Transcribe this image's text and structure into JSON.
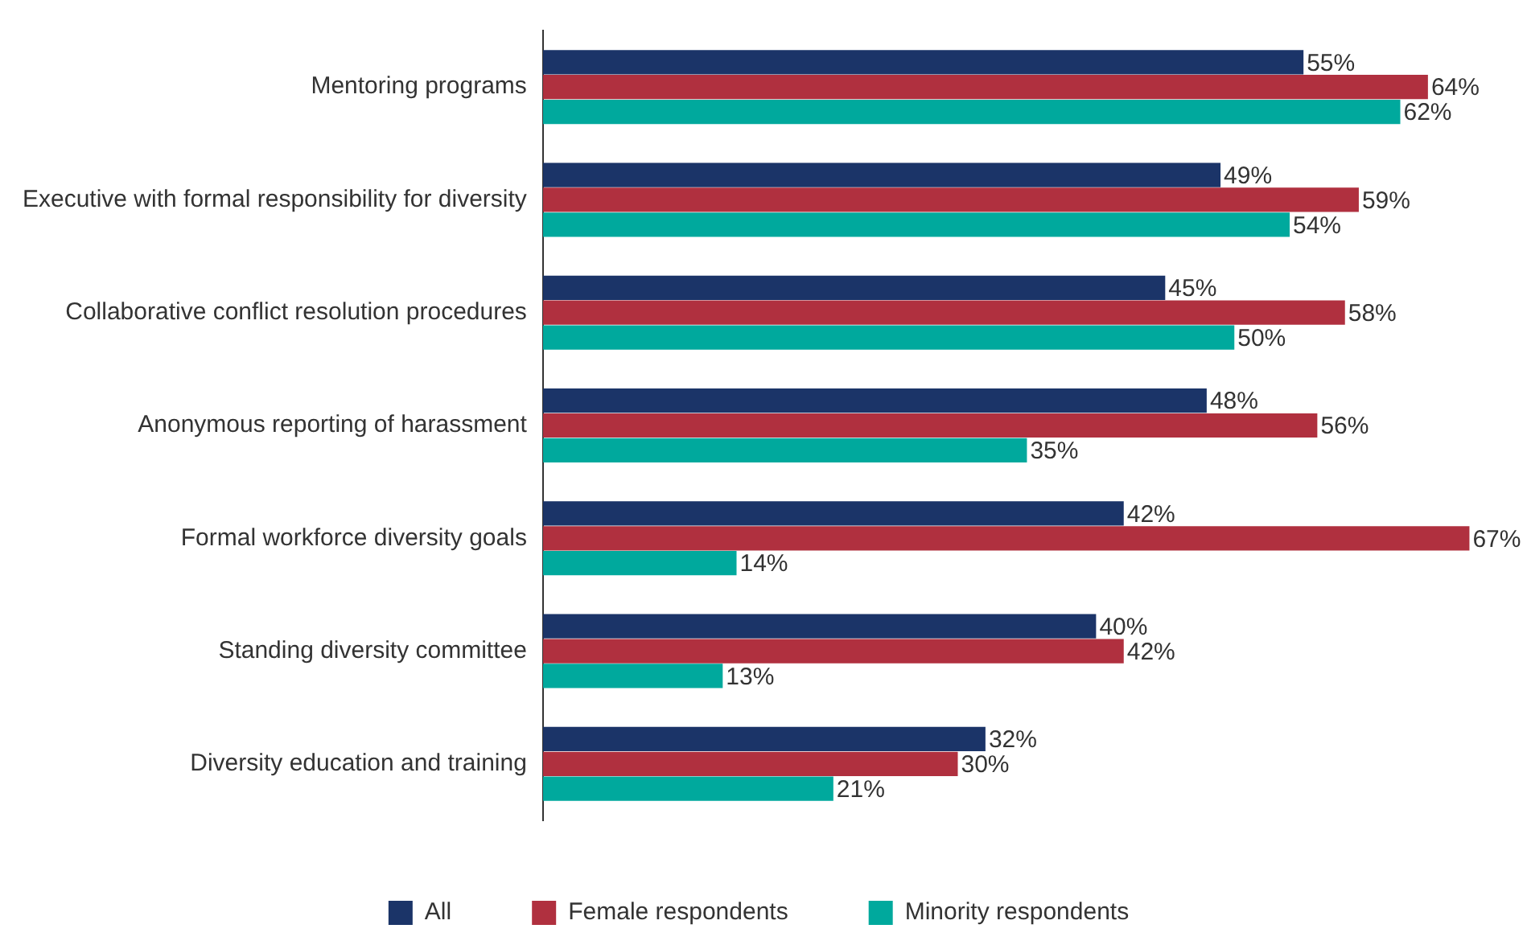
{
  "chart_data": {
    "type": "bar",
    "orientation": "horizontal",
    "legend": "bottom",
    "categories": [
      "Mentoring programs",
      "Executive with formal responsibility for diversity",
      "Collaborative conflict resolution procedures",
      "Anonymous reporting of harassment",
      "Formal workforce diversity goals",
      "Standing diversity committee",
      "Diversity education and training"
    ],
    "series": [
      {
        "name": "All",
        "color": "#1b3468",
        "values": [
          55,
          49,
          45,
          48,
          42,
          40,
          32
        ],
        "value_labels": [
          "55%",
          "49%",
          "45%",
          "48%",
          "42%",
          "40%",
          "32%"
        ]
      },
      {
        "name": "Female respondents",
        "color": "#b0303f",
        "values": [
          64,
          59,
          58,
          56,
          67,
          42,
          30
        ],
        "value_labels": [
          "64%",
          "59%",
          "58%",
          "56%",
          "67%",
          "42%",
          "30%"
        ]
      },
      {
        "name": "Minority respondents",
        "color": "#00a99d",
        "values": [
          62,
          54,
          50,
          35,
          14,
          13,
          21
        ],
        "value_labels": [
          "62%",
          "54%",
          "50%",
          "35%",
          "14%",
          "13%",
          "21%"
        ]
      }
    ]
  }
}
